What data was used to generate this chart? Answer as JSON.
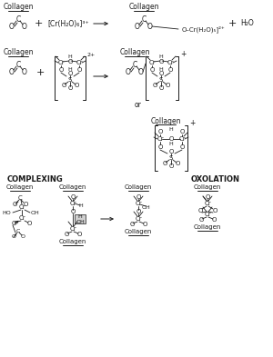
{
  "bg_color": "#ffffff",
  "text_color": "#1a1a1a",
  "line_color": "#1a1a1a"
}
